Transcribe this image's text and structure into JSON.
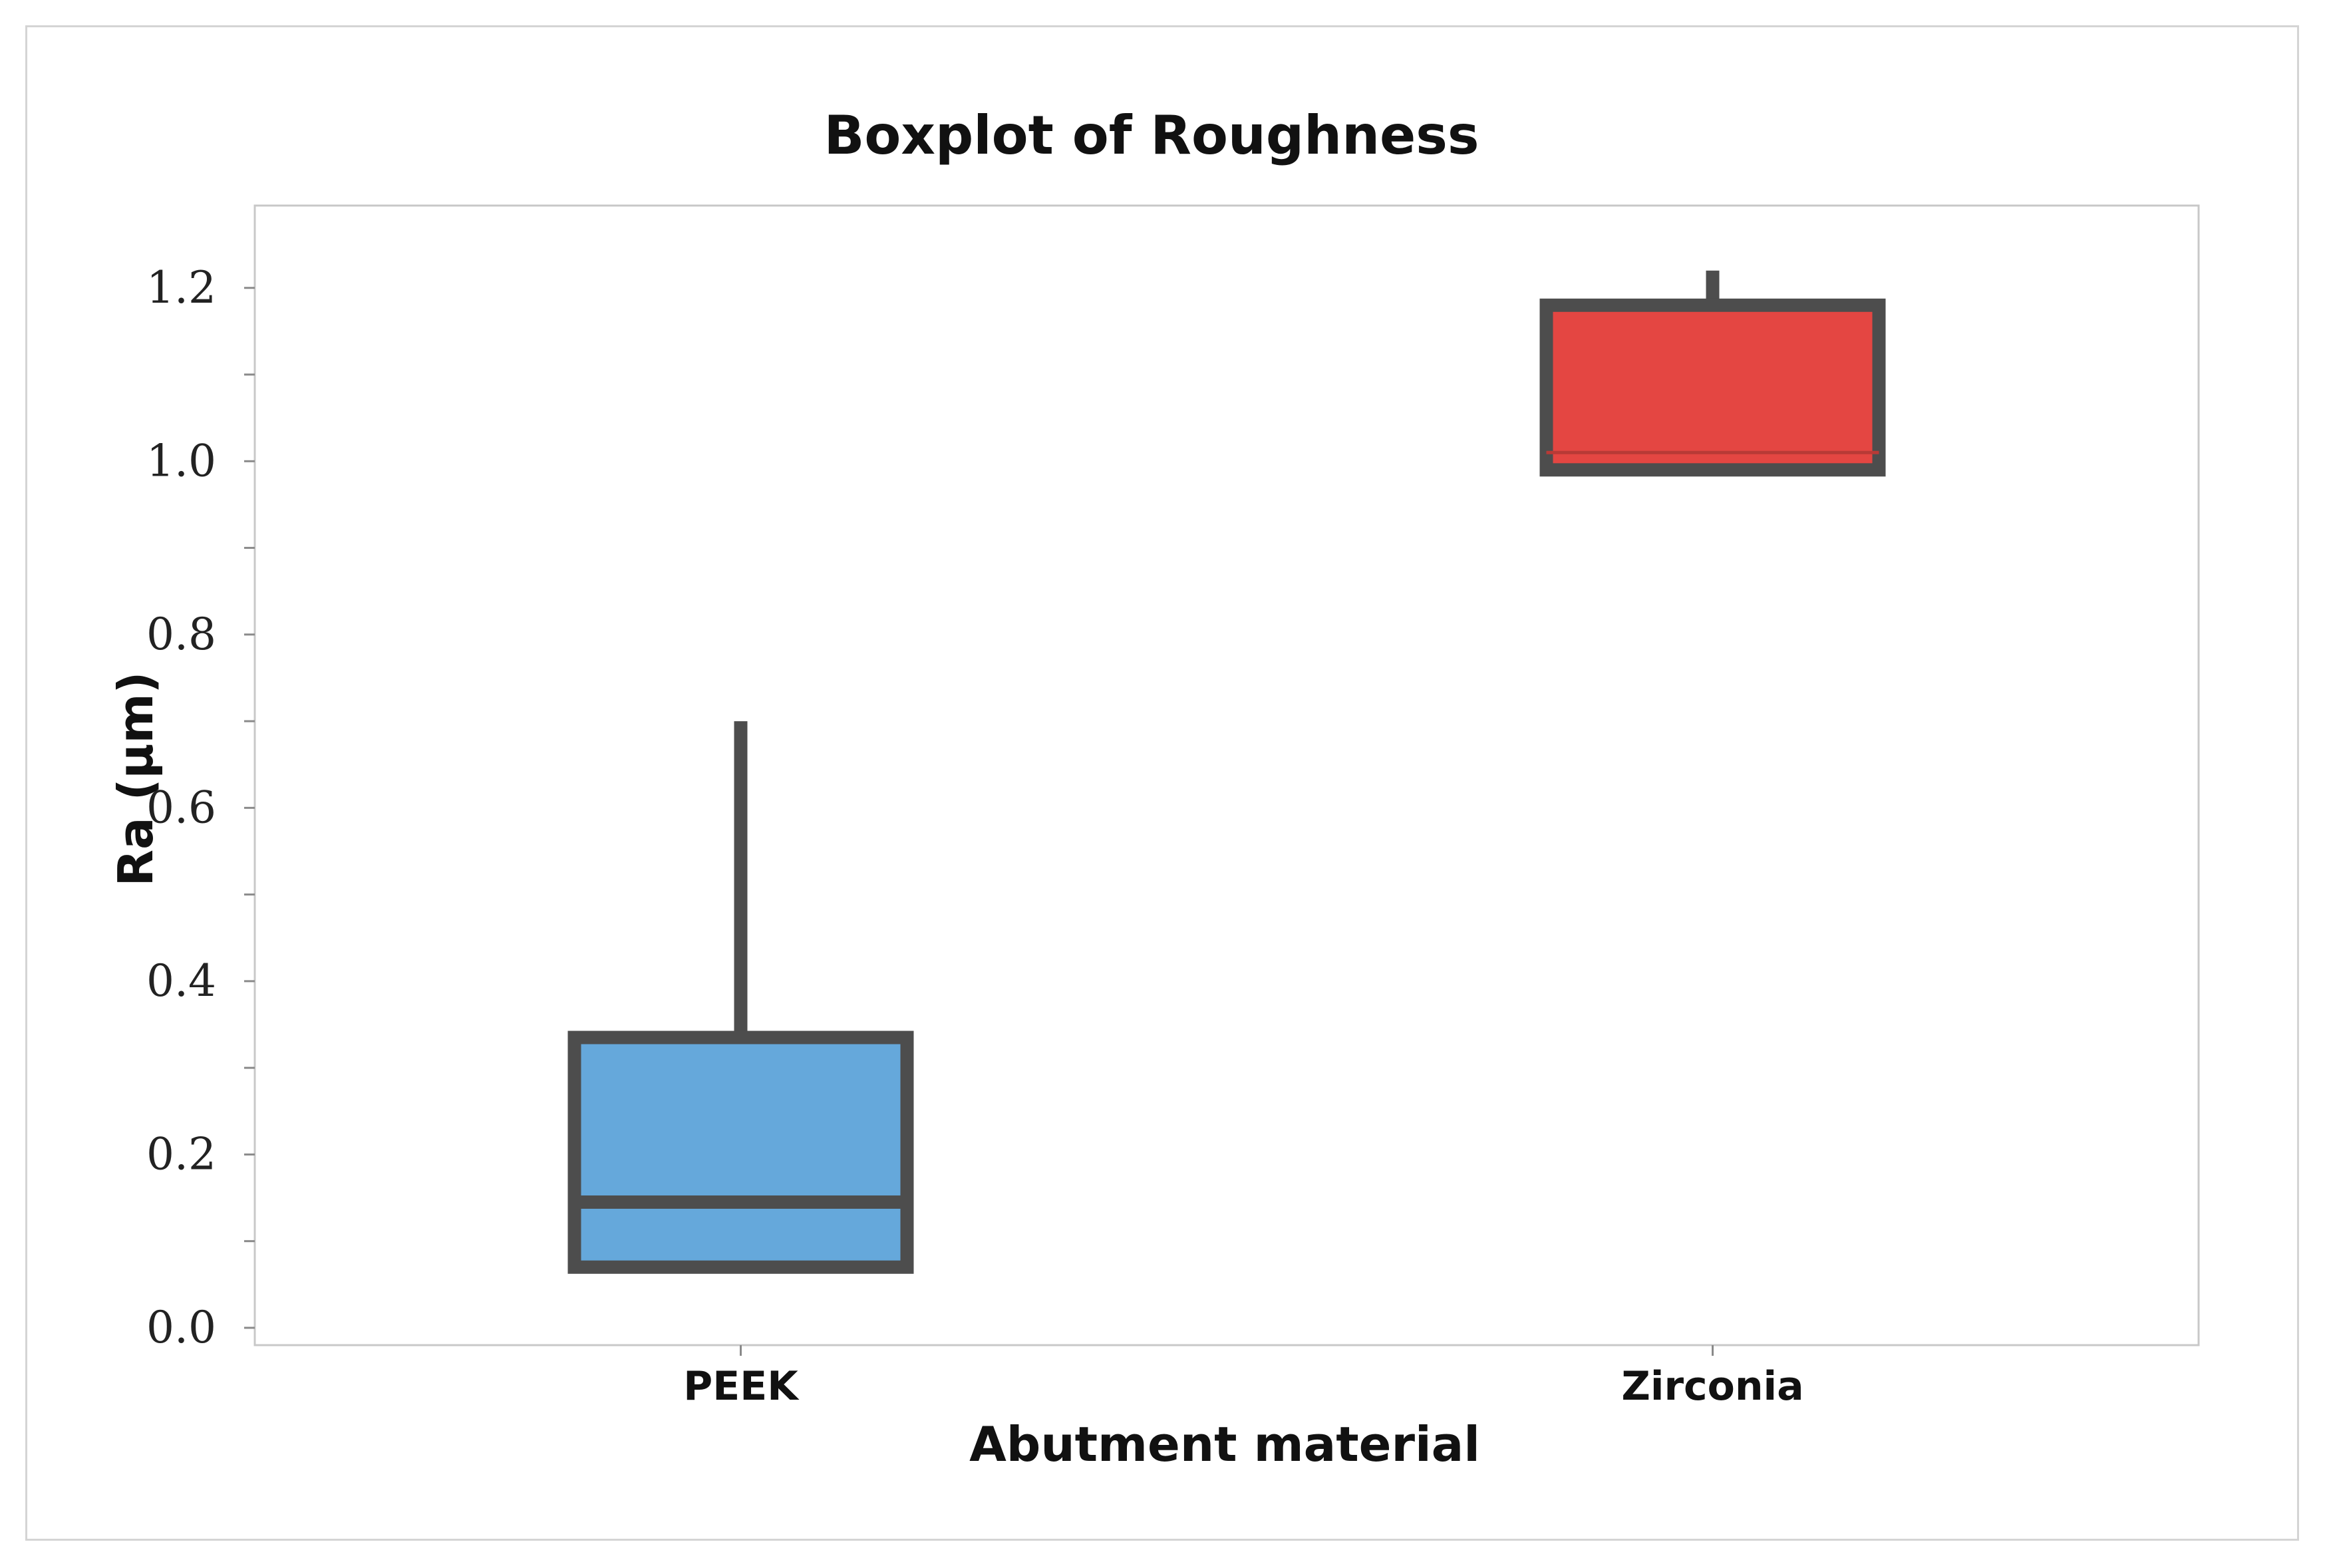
{
  "chart_data": {
    "type": "boxplot",
    "title": "Boxplot of Roughness",
    "xlabel": "Abutment material",
    "ylabel": "Ra (µm)",
    "ylim": [
      -0.02,
      1.295
    ],
    "y_ticks": [
      0.0,
      0.2,
      0.4,
      0.6,
      0.8,
      1.0,
      1.2
    ],
    "y_tick_labels": [
      "0.0",
      "0.2",
      "0.4",
      "0.6",
      "0.8",
      "1.0",
      "1.2"
    ],
    "grid": false,
    "legend": "none",
    "categories": [
      "PEEK",
      "Zirconia"
    ],
    "boxes": [
      {
        "category": "PEEK",
        "whisker_low": 0.07,
        "q1": 0.07,
        "median": 0.145,
        "q3": 0.335,
        "whisker_high": 0.7,
        "color": "#65a8db"
      },
      {
        "category": "Zirconia",
        "whisker_low": 0.985,
        "q1": 0.99,
        "median": 1.01,
        "q3": 1.18,
        "whisker_high": 1.22,
        "color": "#e44642"
      }
    ],
    "colors": {
      "outline": "#4d4d4d",
      "axis": "#8a8a8a",
      "plot_border": "#c8c8c8"
    }
  }
}
